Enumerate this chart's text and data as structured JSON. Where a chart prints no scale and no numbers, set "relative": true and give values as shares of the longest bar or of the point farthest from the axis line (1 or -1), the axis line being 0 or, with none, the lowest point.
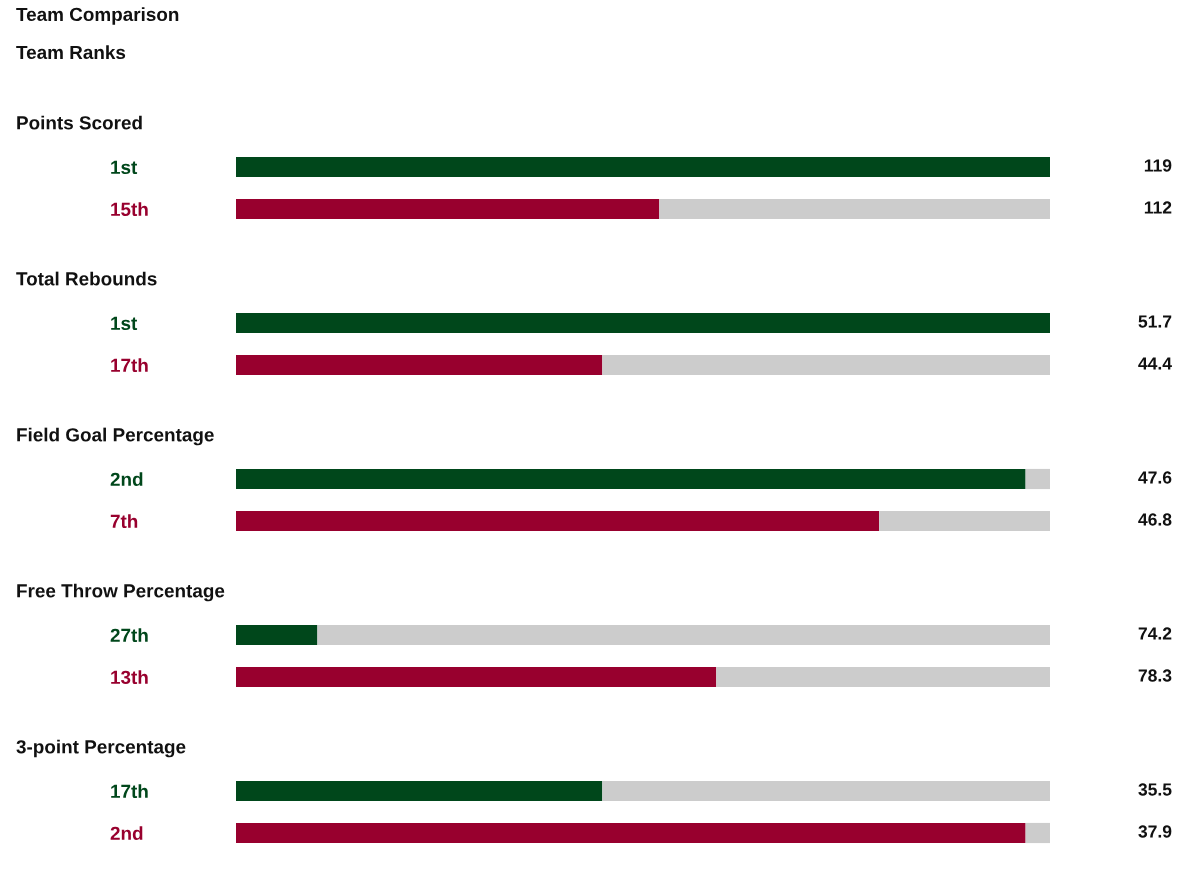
{
  "chart_data": [
    {
      "type": "other",
      "title": "Team Comparison",
      "subtitle": "Team Ranks"
    },
    {
      "type": "bar",
      "title": "Points Scored",
      "orientation": "horizontal",
      "stacked": true,
      "relative": true,
      "tick_labels": "y",
      "categories": [
        "1st",
        "15th"
      ],
      "series": [
        {
          "colors": [
            "#00471b",
            "#98002e"
          ],
          "values": [
            1.0,
            0.52
          ]
        },
        {
          "color": "#cccccc",
          "values": [
            0,
            0.48
          ]
        }
      ],
      "annotations": [
        "119",
        "112"
      ]
    },
    {
      "type": "bar",
      "title": "Total Rebounds",
      "orientation": "horizontal",
      "stacked": true,
      "relative": true,
      "tick_labels": "y",
      "categories": [
        "1st",
        "17th"
      ],
      "series": [
        {
          "colors": [
            "#00471b",
            "#98002e"
          ],
          "values": [
            1.0,
            0.45
          ]
        },
        {
          "color": "#cccccc",
          "values": [
            0,
            0.55
          ]
        }
      ],
      "annotations": [
        "51.7",
        "44.4"
      ]
    },
    {
      "type": "bar",
      "title": "Field Goal Percentage",
      "orientation": "horizontal",
      "stacked": true,
      "relative": true,
      "tick_labels": "y",
      "categories": [
        "2nd",
        "7th"
      ],
      "series": [
        {
          "colors": [
            "#00471b",
            "#98002e"
          ],
          "values": [
            0.97,
            0.79
          ]
        },
        {
          "color": "#cccccc",
          "values": [
            0.03,
            0.21
          ]
        }
      ],
      "annotations": [
        "47.6",
        "46.8"
      ]
    },
    {
      "type": "bar",
      "title": "Free Throw Percentage",
      "orientation": "horizontal",
      "stacked": true,
      "relative": true,
      "tick_labels": "y",
      "categories": [
        "27th",
        "13th"
      ],
      "series": [
        {
          "colors": [
            "#00471b",
            "#98002e"
          ],
          "values": [
            0.1,
            0.59
          ]
        },
        {
          "color": "#cccccc",
          "values": [
            0.9,
            0.41
          ]
        }
      ],
      "annotations": [
        "74.2",
        "78.3"
      ]
    },
    {
      "type": "bar",
      "title": "3-point Percentage",
      "orientation": "horizontal",
      "stacked": true,
      "relative": true,
      "tick_labels": "y",
      "categories": [
        "17th",
        "2nd"
      ],
      "series": [
        {
          "colors": [
            "#00471b",
            "#98002e"
          ],
          "values": [
            0.45,
            0.97
          ]
        },
        {
          "color": "#cccccc",
          "values": [
            0.55,
            0.03
          ]
        }
      ],
      "annotations": [
        "35.5",
        "37.9"
      ]
    }
  ]
}
